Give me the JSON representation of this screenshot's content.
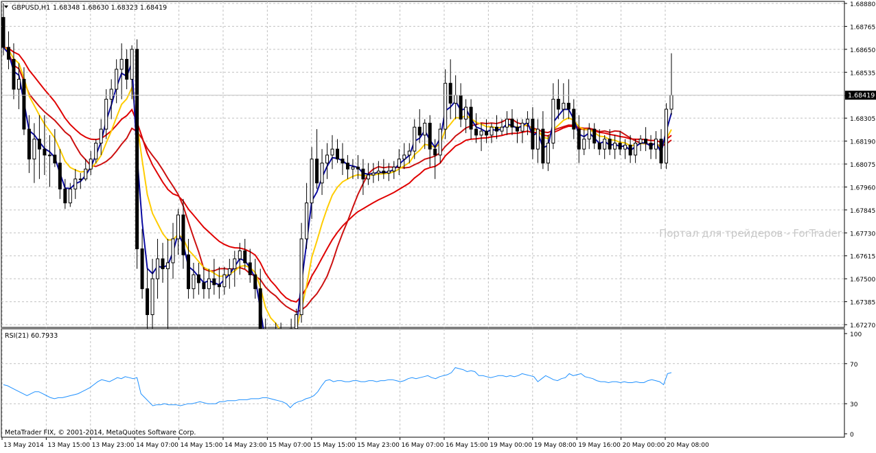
{
  "header": {
    "symbol_label": "GBPUSD,H1",
    "ohlc": "1.68348 1.68630 1.68323 1.68419"
  },
  "watermark": "Портал для трейдеров - ForTrader",
  "footer": {
    "copyright": "MetaTrader FIX, © 2001-2014, MetaQuotes Software Corp."
  },
  "current_price_label": "1.68419",
  "rsi_panel": {
    "label": "RSI(21) 60.7933"
  },
  "colors": {
    "bull_candle": "#ffffff",
    "bear_candle": "#000000",
    "ma_fast": "#0a0aa0",
    "ma_mid": "#ffcc00",
    "ma_slow1": "#e00000",
    "ma_slow2": "#cc1010",
    "rsi_line": "#1e90ff",
    "grid": "#c0c0c0"
  },
  "chart_data": [
    {
      "type": "candlestick",
      "title": "GBPUSD,H1",
      "ylim": [
        1.6727,
        1.6888
      ],
      "y_ticks": [
        "1.68880",
        "1.68765",
        "1.68650",
        "1.68535",
        "1.68419",
        "1.68305",
        "1.68190",
        "1.68075",
        "1.67960",
        "1.67845",
        "1.67730",
        "1.67615",
        "1.67500",
        "1.67385",
        "1.67270"
      ],
      "x_ticks": [
        "13 May 2014",
        "13 May 15:00",
        "13 May 23:00",
        "14 May 07:00",
        "14 May 15:00",
        "14 May 23:00",
        "15 May 07:00",
        "15 May 15:00",
        "15 May 23:00",
        "16 May 07:00",
        "16 May 15:00",
        "19 May 00:00",
        "19 May 08:00",
        "19 May 16:00",
        "20 May 00:00",
        "20 May 08:00"
      ],
      "candles": [
        [
          1.6881,
          1.6888,
          1.6862,
          1.6866
        ],
        [
          1.6866,
          1.6874,
          1.6855,
          1.686
        ],
        [
          1.686,
          1.6868,
          1.684,
          1.6845
        ],
        [
          1.6845,
          1.6858,
          1.6835,
          1.685
        ],
        [
          1.685,
          1.6856,
          1.6822,
          1.6825
        ],
        [
          1.6825,
          1.6832,
          1.6803,
          1.681
        ],
        [
          1.681,
          1.6828,
          1.6798,
          1.682
        ],
        [
          1.682,
          1.6832,
          1.68,
          1.6815
        ],
        [
          1.6815,
          1.6832,
          1.6802,
          1.6812
        ],
        [
          1.6812,
          1.6822,
          1.6796,
          1.6812
        ],
        [
          1.6812,
          1.6825,
          1.6806,
          1.6808
        ],
        [
          1.6808,
          1.6815,
          1.679,
          1.6795
        ],
        [
          1.6795,
          1.68,
          1.6785,
          1.6788
        ],
        [
          1.6788,
          1.6798,
          1.6786,
          1.6795
        ],
        [
          1.6795,
          1.6805,
          1.679,
          1.68
        ],
        [
          1.68,
          1.6803,
          1.6795,
          1.68
        ],
        [
          1.68,
          1.681,
          1.6799,
          1.6805
        ],
        [
          1.6805,
          1.6814,
          1.6802,
          1.681
        ],
        [
          1.681,
          1.682,
          1.6808,
          1.6818
        ],
        [
          1.6818,
          1.683,
          1.6812,
          1.6825
        ],
        [
          1.6825,
          1.6845,
          1.682,
          1.684
        ],
        [
          1.684,
          1.685,
          1.683,
          1.6845
        ],
        [
          1.6845,
          1.686,
          1.6838,
          1.6855
        ],
        [
          1.6855,
          1.6868,
          1.684,
          1.686
        ],
        [
          1.686,
          1.6865,
          1.6845,
          1.685
        ],
        [
          1.685,
          1.6867,
          1.684,
          1.6865
        ],
        [
          1.6865,
          1.687,
          1.6755,
          1.6765
        ],
        [
          1.6765,
          1.6775,
          1.674,
          1.6745
        ],
        [
          1.6745,
          1.6755,
          1.6725,
          1.6732
        ],
        [
          1.6732,
          1.676,
          1.67,
          1.675
        ],
        [
          1.675,
          1.677,
          1.674,
          1.676
        ],
        [
          1.676,
          1.6768,
          1.6748,
          1.6755
        ],
        [
          1.6755,
          1.677,
          1.671,
          1.6758
        ],
        [
          1.6758,
          1.6778,
          1.675,
          1.677
        ],
        [
          1.677,
          1.6785,
          1.6762,
          1.6782
        ],
        [
          1.6782,
          1.679,
          1.6755,
          1.6762
        ],
        [
          1.6762,
          1.677,
          1.674,
          1.6745
        ],
        [
          1.6745,
          1.6758,
          1.674,
          1.6752
        ],
        [
          1.6752,
          1.6758,
          1.6742,
          1.6748
        ],
        [
          1.6748,
          1.6756,
          1.674,
          1.6745
        ],
        [
          1.6745,
          1.6755,
          1.674,
          1.675
        ],
        [
          1.675,
          1.676,
          1.6742,
          1.6747
        ],
        [
          1.6747,
          1.6756,
          1.674,
          1.6746
        ],
        [
          1.6746,
          1.6756,
          1.6742,
          1.6752
        ],
        [
          1.6752,
          1.676,
          1.6745,
          1.6755
        ],
        [
          1.6755,
          1.6764,
          1.6746,
          1.676
        ],
        [
          1.676,
          1.6768,
          1.6752,
          1.6764
        ],
        [
          1.6764,
          1.677,
          1.6755,
          1.6758
        ],
        [
          1.6758,
          1.6765,
          1.6748,
          1.6752
        ],
        [
          1.6752,
          1.676,
          1.674,
          1.6745
        ],
        [
          1.6745,
          1.6755,
          1.6715,
          1.672
        ],
        [
          1.672,
          1.673,
          1.6695,
          1.67
        ],
        [
          1.67,
          1.672,
          1.669,
          1.6712
        ],
        [
          1.6712,
          1.6728,
          1.6705,
          1.6718
        ],
        [
          1.6718,
          1.6728,
          1.6705,
          1.671
        ],
        [
          1.671,
          1.6725,
          1.67,
          1.6715
        ],
        [
          1.6715,
          1.673,
          1.671,
          1.6725
        ],
        [
          1.6725,
          1.6735,
          1.67,
          1.6732
        ],
        [
          1.6732,
          1.6778,
          1.6728,
          1.677
        ],
        [
          1.677,
          1.6798,
          1.6765,
          1.6788
        ],
        [
          1.6788,
          1.6816,
          1.678,
          1.681
        ],
        [
          1.681,
          1.6825,
          1.6795,
          1.6798
        ],
        [
          1.6798,
          1.6815,
          1.6792,
          1.6808
        ],
        [
          1.6808,
          1.6818,
          1.68,
          1.6812
        ],
        [
          1.6812,
          1.6822,
          1.6805,
          1.6815
        ],
        [
          1.6815,
          1.682,
          1.6808,
          1.681
        ],
        [
          1.681,
          1.6818,
          1.6802,
          1.6808
        ],
        [
          1.6808,
          1.6812,
          1.68,
          1.6805
        ],
        [
          1.6805,
          1.681,
          1.68,
          1.6806
        ],
        [
          1.6806,
          1.6812,
          1.68,
          1.6805
        ],
        [
          1.6805,
          1.681,
          1.6792,
          1.68
        ],
        [
          1.68,
          1.6808,
          1.6797,
          1.6802
        ],
        [
          1.6802,
          1.6808,
          1.6798,
          1.6803
        ],
        [
          1.6803,
          1.6809,
          1.6799,
          1.6804
        ],
        [
          1.6804,
          1.681,
          1.68,
          1.6803
        ],
        [
          1.6803,
          1.6808,
          1.6799,
          1.6804
        ],
        [
          1.6804,
          1.6809,
          1.68,
          1.6806
        ],
        [
          1.6806,
          1.6815,
          1.6802,
          1.681
        ],
        [
          1.681,
          1.6818,
          1.6805,
          1.6812
        ],
        [
          1.6812,
          1.6818,
          1.6808,
          1.6814
        ],
        [
          1.6814,
          1.683,
          1.681,
          1.6826
        ],
        [
          1.6826,
          1.6835,
          1.6818,
          1.6822
        ],
        [
          1.6822,
          1.683,
          1.6815,
          1.6828
        ],
        [
          1.6828,
          1.6832,
          1.6806,
          1.6815
        ],
        [
          1.6815,
          1.682,
          1.68,
          1.6812
        ],
        [
          1.6812,
          1.6828,
          1.6808,
          1.6825
        ],
        [
          1.6825,
          1.6855,
          1.682,
          1.6848
        ],
        [
          1.6848,
          1.686,
          1.683,
          1.6838
        ],
        [
          1.6838,
          1.6852,
          1.683,
          1.6842
        ],
        [
          1.6842,
          1.6848,
          1.6826,
          1.683
        ],
        [
          1.683,
          1.684,
          1.6823,
          1.6836
        ],
        [
          1.6836,
          1.684,
          1.682,
          1.6825
        ],
        [
          1.6825,
          1.6833,
          1.6818,
          1.6822
        ],
        [
          1.6822,
          1.6828,
          1.6814,
          1.6824
        ],
        [
          1.6824,
          1.683,
          1.6818,
          1.6822
        ],
        [
          1.6822,
          1.6828,
          1.6818,
          1.6826
        ],
        [
          1.6826,
          1.6832,
          1.682,
          1.6824
        ],
        [
          1.6824,
          1.683,
          1.6822,
          1.6826
        ],
        [
          1.6826,
          1.6834,
          1.6822,
          1.683
        ],
        [
          1.683,
          1.6835,
          1.6822,
          1.6826
        ],
        [
          1.6826,
          1.683,
          1.6818,
          1.6824
        ],
        [
          1.6824,
          1.683,
          1.6818,
          1.6828
        ],
        [
          1.6828,
          1.6834,
          1.6822,
          1.683
        ],
        [
          1.683,
          1.6836,
          1.681,
          1.6815
        ],
        [
          1.6815,
          1.683,
          1.6808,
          1.6825
        ],
        [
          1.6825,
          1.6834,
          1.6805,
          1.6808
        ],
        [
          1.6808,
          1.6822,
          1.6804,
          1.6818
        ],
        [
          1.6818,
          1.6848,
          1.6815,
          1.684
        ],
        [
          1.684,
          1.685,
          1.683,
          1.6835
        ],
        [
          1.6835,
          1.6848,
          1.683,
          1.6838
        ],
        [
          1.6838,
          1.685,
          1.683,
          1.6835
        ],
        [
          1.6835,
          1.684,
          1.682,
          1.6825
        ],
        [
          1.6825,
          1.6832,
          1.6808,
          1.6815
        ],
        [
          1.6815,
          1.6825,
          1.6812,
          1.682
        ],
        [
          1.682,
          1.6828,
          1.6815,
          1.6825
        ],
        [
          1.6825,
          1.6828,
          1.6815,
          1.6818
        ],
        [
          1.6818,
          1.6825,
          1.6812,
          1.6815
        ],
        [
          1.6815,
          1.6822,
          1.681,
          1.682
        ],
        [
          1.682,
          1.6825,
          1.6812,
          1.6815
        ],
        [
          1.6815,
          1.6822,
          1.681,
          1.6818
        ],
        [
          1.6818,
          1.6824,
          1.6812,
          1.6815
        ],
        [
          1.6815,
          1.682,
          1.681,
          1.6817
        ],
        [
          1.6817,
          1.6822,
          1.6808,
          1.6812
        ],
        [
          1.6812,
          1.682,
          1.6808,
          1.6818
        ],
        [
          1.6818,
          1.6822,
          1.6814,
          1.682
        ],
        [
          1.682,
          1.6826,
          1.6814,
          1.6818
        ],
        [
          1.6818,
          1.6822,
          1.681,
          1.6815
        ],
        [
          1.6815,
          1.6824,
          1.681,
          1.682
        ],
        [
          1.682,
          1.6825,
          1.6805,
          1.6808
        ],
        [
          1.6808,
          1.6838,
          1.6805,
          1.6835
        ],
        [
          1.6835,
          1.6863,
          1.6832,
          1.6842
        ]
      ]
    },
    {
      "type": "line",
      "title": "RSI(21) 60.7933",
      "ylim": [
        0,
        100
      ],
      "y_ticks": [
        "100",
        "70",
        "30",
        "0"
      ],
      "values": [
        49,
        48,
        46,
        44,
        42,
        40,
        38,
        40,
        42,
        42,
        40,
        38,
        36,
        35,
        36,
        36,
        37,
        38,
        39,
        40,
        42,
        44,
        46,
        49,
        52,
        54,
        53,
        52,
        54,
        56,
        55,
        57,
        56,
        55,
        56,
        40,
        36,
        32,
        28,
        29,
        29,
        30,
        29,
        29,
        29,
        28,
        29,
        30,
        30,
        31,
        32,
        31,
        30,
        30,
        30,
        32,
        32,
        33,
        33,
        33,
        34,
        34,
        34,
        35,
        35,
        35,
        36,
        36,
        35,
        34,
        33,
        32,
        30,
        26,
        30,
        32,
        33,
        35,
        36,
        38,
        42,
        48,
        53,
        54,
        52,
        53,
        53,
        52,
        52,
        53,
        53,
        52,
        52,
        53,
        53,
        52,
        53,
        53,
        54,
        54,
        53,
        52,
        53,
        55,
        56,
        55,
        56,
        57,
        58,
        56,
        55,
        57,
        58,
        59,
        61,
        66,
        65,
        64,
        62,
        63,
        62,
        58,
        58,
        57,
        56,
        57,
        58,
        58,
        57,
        58,
        57,
        58,
        60,
        59,
        58,
        57,
        52,
        55,
        58,
        56,
        54,
        53,
        55,
        56,
        60,
        58,
        59,
        60,
        57,
        56,
        55,
        53,
        52,
        52,
        51,
        52,
        52,
        51,
        52,
        51,
        51,
        52,
        51,
        51,
        53,
        54,
        53,
        52,
        49,
        60,
        61
      ]
    }
  ]
}
